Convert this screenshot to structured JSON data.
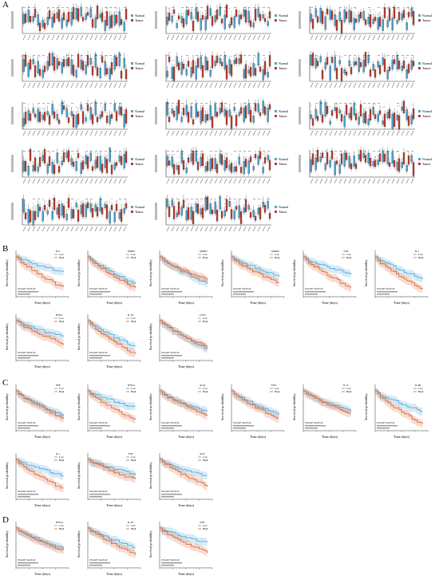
{
  "panels": {
    "A": {
      "letter": "A"
    },
    "B": {
      "letter": "B"
    },
    "C": {
      "letter": "C"
    },
    "D": {
      "letter": "D"
    }
  },
  "box_legend": {
    "normal": "Normal",
    "tumor": "Tumor"
  },
  "colors": {
    "normal": "#4aa6d6",
    "tumor": "#c0392b",
    "low": "#4aa6d6",
    "high": "#d9602e"
  },
  "km": {
    "ylabel": "Survival probability",
    "xlabel": "Time (days)",
    "legend_low": "Low",
    "legend_high": "High",
    "caption_title": "Overall Survival",
    "B": [
      {
        "gene": "IL6"
      },
      {
        "gene": "MMP1"
      },
      {
        "gene": "MMP3"
      },
      {
        "gene": "MMP9"
      },
      {
        "gene": "TNF"
      },
      {
        "gene": "IL1"
      },
      {
        "gene": "BTK1"
      },
      {
        "gene": "IL18"
      },
      {
        "gene": "CSF3"
      }
    ],
    "C": [
      {
        "gene": "EPF"
      },
      {
        "gene": "IFNG1"
      },
      {
        "gene": "ACR"
      },
      {
        "gene": "FOS"
      },
      {
        "gene": "IL13"
      },
      {
        "gene": "IL4R"
      },
      {
        "gene": "IL1"
      },
      {
        "gene": "TNF"
      },
      {
        "gene": "ALP"
      }
    ],
    "D": [
      {
        "gene": "IFNG1"
      },
      {
        "gene": "IL18"
      },
      {
        "gene": "TNF"
      }
    ]
  }
}
